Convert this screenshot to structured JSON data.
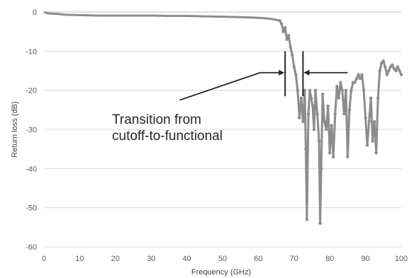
{
  "chart_data": {
    "type": "line",
    "xlabel": "Frequency (GHz)",
    "ylabel": "Return loss (dB)",
    "xlim": [
      0,
      100
    ],
    "ylim": [
      -60,
      0
    ],
    "x_ticks": [
      "0",
      "10",
      "20",
      "30",
      "40",
      "50",
      "60",
      "70",
      "80",
      "90",
      "100"
    ],
    "y_ticks": [
      "0",
      "-10",
      "-20",
      "-30",
      "-40",
      "-50",
      "-60"
    ],
    "grid": "horizontal",
    "annotation": {
      "line1": "Transition from",
      "line2": "cutoff-to-functional",
      "bracket_x": [
        67.5,
        72.5
      ]
    },
    "series": [
      {
        "color": "#8c8c8c",
        "x": [
          0,
          1,
          2,
          4,
          6,
          10,
          15,
          20,
          25,
          30,
          35,
          40,
          45,
          50,
          55,
          58,
          60,
          62,
          63,
          64,
          65,
          66,
          66.5,
          67,
          67.5,
          68,
          68.5,
          69,
          69.5,
          70,
          70.5,
          71,
          71.5,
          72,
          72.5,
          73,
          73.3,
          73.6,
          74,
          74.4,
          74.8,
          75.2,
          75.6,
          76,
          76.5,
          77,
          77.3,
          77.6,
          78,
          78.5,
          79,
          79.5,
          80,
          80.5,
          81,
          81.5,
          82,
          82.5,
          83,
          83.5,
          84,
          84.5,
          85,
          85.5,
          86,
          86.5,
          87,
          87.5,
          88,
          88.5,
          89,
          89.5,
          90,
          90.5,
          91,
          91.5,
          92,
          92.5,
          93,
          93.5,
          94,
          94.5,
          95,
          95.5,
          96,
          96.5,
          97,
          97.5,
          98,
          98.5,
          99,
          99.5,
          100
        ],
        "y": [
          0,
          -0.3,
          -0.4,
          -0.5,
          -0.7,
          -0.8,
          -0.9,
          -0.9,
          -0.9,
          -0.9,
          -1.0,
          -1.0,
          -1.1,
          -1.2,
          -1.3,
          -1.4,
          -1.5,
          -1.6,
          -1.7,
          -1.8,
          -2.0,
          -2.2,
          -3.0,
          -5.0,
          -4.0,
          -7.0,
          -6.0,
          -9.0,
          -11.0,
          -14.0,
          -16.0,
          -20.0,
          -27.0,
          -22.0,
          -28.0,
          -20.0,
          -35.0,
          -53.0,
          -26.0,
          -20.0,
          -22.0,
          -24.0,
          -30.0,
          -20.0,
          -26.0,
          -33.0,
          -54.0,
          -40.0,
          -21.0,
          -28.0,
          -30.0,
          -24.0,
          -36.0,
          -29.0,
          -37.0,
          -26.0,
          -19.0,
          -22.0,
          -18.0,
          -20.0,
          -26.0,
          -20.0,
          -37.0,
          -25.0,
          -20.0,
          -18.0,
          -18.0,
          -17.0,
          -16.0,
          -17.0,
          -16.0,
          -20.0,
          -27.0,
          -34.0,
          -28.0,
          -22.0,
          -33.0,
          -28.0,
          -36.0,
          -22.0,
          -15.0,
          -13.0,
          -12.5,
          -14.0,
          -16.0,
          -15.0,
          -14.0,
          -13.5,
          -14.5,
          -15.0,
          -14.0,
          -15.0,
          -16.0
        ]
      }
    ]
  }
}
